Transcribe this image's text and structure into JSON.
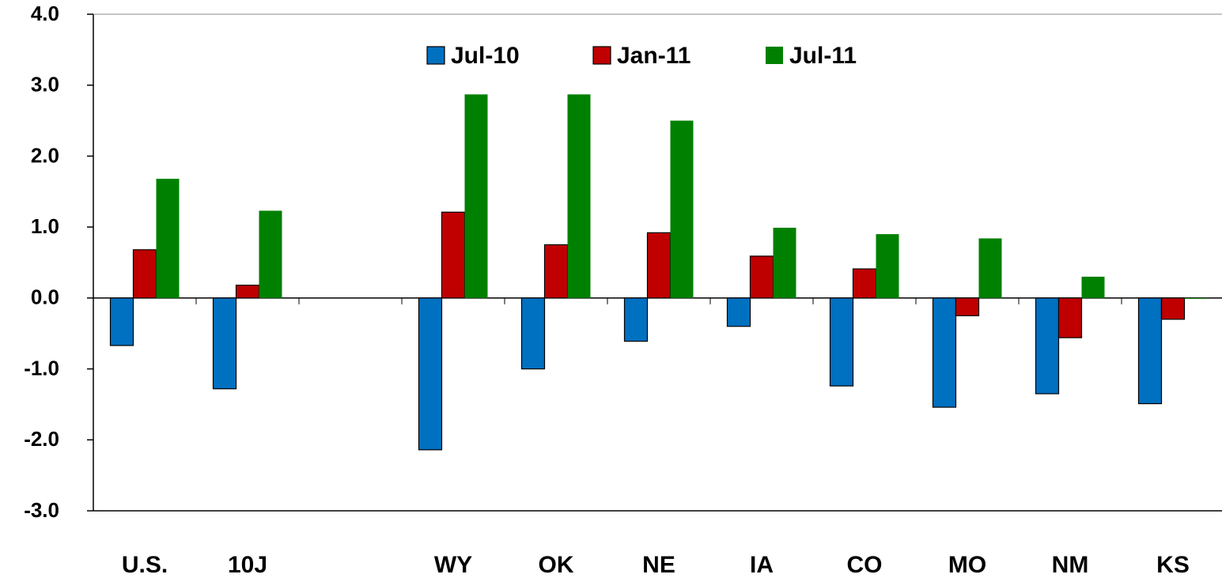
{
  "chart_data": {
    "type": "bar",
    "categories": [
      "U.S.",
      "10J",
      null,
      "WY",
      "OK",
      "NE",
      "IA",
      "CO",
      "MO",
      "NM",
      "KS"
    ],
    "series": [
      {
        "name": "Jul-10",
        "color": "#0070c0",
        "values": [
          -0.67,
          -1.28,
          null,
          -2.14,
          -1.0,
          -0.61,
          -0.4,
          -1.24,
          -1.54,
          -1.35,
          -1.49
        ]
      },
      {
        "name": "Jan-11",
        "color": "#c00000",
        "values": [
          0.68,
          0.18,
          null,
          1.21,
          0.75,
          0.92,
          0.59,
          0.41,
          -0.25,
          -0.56,
          -0.3
        ]
      },
      {
        "name": "Jul-11",
        "color": "#008000",
        "values": [
          1.68,
          1.23,
          null,
          2.87,
          2.87,
          2.5,
          0.99,
          0.9,
          0.84,
          0.3,
          -0.01
        ]
      }
    ],
    "ylim": [
      -3,
      4
    ],
    "yticks": [
      {
        "value": -3,
        "label": "-3.0"
      },
      {
        "value": -2,
        "label": "-2.0"
      },
      {
        "value": -1,
        "label": "-1.0"
      },
      {
        "value": 0,
        "label": "0.0"
      },
      {
        "value": 1,
        "label": "1.0"
      },
      {
        "value": 2,
        "label": "2.0"
      },
      {
        "value": 3,
        "label": "3.0"
      },
      {
        "value": 4,
        "label": "4.0"
      }
    ]
  }
}
